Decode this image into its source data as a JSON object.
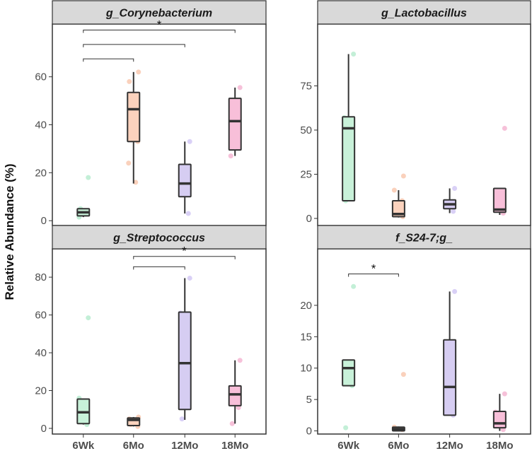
{
  "chart_data": {
    "type": "box",
    "ylabel": "Relative Abundance (%)",
    "categories": [
      "6Wk",
      "6Mo",
      "12Mo",
      "18Mo"
    ],
    "colors": {
      "6Wk": {
        "fill": "#c8f1d9",
        "point": "#b9ecd0"
      },
      "6Mo": {
        "fill": "#fbd2bd",
        "point": "#f9c9b0"
      },
      "12Mo": {
        "fill": "#d6cdf2",
        "point": "#d2c8f5"
      },
      "18Mo": {
        "fill": "#f8bfd9",
        "point": "#f5b6d2"
      }
    },
    "panels": [
      {
        "title": "g_Corynebacterium",
        "ylim": [
          -2,
          82
        ],
        "yticks": [
          0,
          20,
          40,
          60
        ],
        "boxes": [
          {
            "category": "6Wk",
            "whisker_low": 1.5,
            "q1": 2,
            "median": 3.5,
            "q3": 5,
            "whisker_high": 5
          },
          {
            "category": "6Mo",
            "whisker_low": 15.5,
            "q1": 33,
            "median": 46.5,
            "q3": 53.5,
            "whisker_high": 62
          },
          {
            "category": "12Mo",
            "whisker_low": 3,
            "q1": 10,
            "median": 15.5,
            "q3": 23.5,
            "whisker_high": 33
          },
          {
            "category": "18Mo",
            "whisker_low": 27,
            "q1": 29.5,
            "median": 41.5,
            "q3": 51,
            "whisker_high": 55.5
          }
        ],
        "points": [
          {
            "category": "6Wk",
            "values": [
              18,
              1.5,
              3,
              5
            ]
          },
          {
            "category": "6Mo",
            "values": [
              62,
              58,
              47,
              43,
              33,
              24,
              16
            ]
          },
          {
            "category": "12Mo",
            "values": [
              33,
              16,
              3
            ]
          },
          {
            "category": "18Mo",
            "values": [
              55.5,
              27
            ]
          }
        ],
        "significance": [
          {
            "from": "6Wk",
            "to": "6Mo",
            "value": 67.5,
            "label": ""
          },
          {
            "from": "6Wk",
            "to": "12Mo",
            "value": 73.5,
            "label": ""
          },
          {
            "from": "6Wk",
            "to": "18Mo",
            "value": 79.5,
            "label": "*"
          }
        ]
      },
      {
        "title": "g_Lactobacillus",
        "ylim": [
          -4,
          110
        ],
        "yticks": [
          0,
          25,
          50,
          75
        ],
        "boxes": [
          {
            "category": "6Wk",
            "whisker_low": 10,
            "q1": 10,
            "median": 51,
            "q3": 57.5,
            "whisker_high": 93
          },
          {
            "category": "6Mo",
            "whisker_low": 0.5,
            "q1": 1,
            "median": 2.5,
            "q3": 10,
            "whisker_high": 16
          },
          {
            "category": "12Mo",
            "whisker_low": 3,
            "q1": 5.5,
            "median": 8,
            "q3": 10.5,
            "whisker_high": 17
          },
          {
            "category": "18Mo",
            "whisker_low": 2,
            "q1": 3.5,
            "median": 5,
            "q3": 17,
            "whisker_high": 17
          }
        ],
        "points": [
          {
            "category": "6Wk",
            "values": [
              93,
              57,
              51,
              10
            ]
          },
          {
            "category": "6Mo",
            "values": [
              24,
              16,
              10,
              2,
              1
            ]
          },
          {
            "category": "12Mo",
            "values": [
              17,
              9,
              4
            ]
          },
          {
            "category": "18Mo",
            "values": [
              51,
              16,
              3
            ]
          }
        ],
        "significance": []
      },
      {
        "title": "g_Streptococcus",
        "ylim": [
          -3,
          95
        ],
        "yticks": [
          0,
          20,
          40,
          60,
          80
        ],
        "boxes": [
          {
            "category": "6Wk",
            "whisker_low": 2,
            "q1": 2.5,
            "median": 8.5,
            "q3": 15.5,
            "whisker_high": 15.5
          },
          {
            "category": "6Mo",
            "whisker_low": 1,
            "q1": 1.5,
            "median": 4.5,
            "q3": 5.5,
            "whisker_high": 6
          },
          {
            "category": "12Mo",
            "whisker_low": 4.5,
            "q1": 10,
            "median": 34.5,
            "q3": 61.5,
            "whisker_high": 79.5
          },
          {
            "category": "18Mo",
            "whisker_low": 2.5,
            "q1": 12,
            "median": 18,
            "q3": 22.5,
            "whisker_high": 36
          }
        ],
        "points": [
          {
            "category": "6Wk",
            "values": [
              58.5,
              16,
              2
            ]
          },
          {
            "category": "6Mo",
            "values": [
              6,
              5,
              4,
              2,
              1
            ]
          },
          {
            "category": "12Mo",
            "values": [
              79.5,
              61,
              34,
              5
            ]
          },
          {
            "category": "18Mo",
            "values": [
              36,
              18,
              11,
              2.5
            ]
          }
        ],
        "significance": [
          {
            "from": "6Mo",
            "to": "12Mo",
            "value": 85.5,
            "label": ""
          },
          {
            "from": "6Mo",
            "to": "18Mo",
            "value": 91,
            "label": "*"
          }
        ]
      },
      {
        "title": "f_S24-7;g_",
        "ylim": [
          -0.5,
          29
        ],
        "yticks": [
          0,
          5,
          10,
          15,
          20
        ],
        "boxes": [
          {
            "category": "6Wk",
            "whisker_low": 7.2,
            "q1": 7.2,
            "median": 10,
            "q3": 11.3,
            "whisker_high": 11.3
          },
          {
            "category": "6Mo",
            "whisker_low": 0,
            "q1": 0,
            "median": 0.3,
            "q3": 0.6,
            "whisker_high": 0.7
          },
          {
            "category": "12Mo",
            "whisker_low": 2.5,
            "q1": 2.5,
            "median": 7,
            "q3": 14.5,
            "whisker_high": 22.2
          },
          {
            "category": "18Mo",
            "whisker_low": 0,
            "q1": 0.5,
            "median": 1.2,
            "q3": 3.1,
            "whisker_high": 5.9
          }
        ],
        "points": [
          {
            "category": "6Wk",
            "values": [
              23,
              11,
              7.2,
              0.5
            ]
          },
          {
            "category": "6Mo",
            "values": [
              9,
              0.6,
              0.2
            ]
          },
          {
            "category": "12Mo",
            "values": [
              22.2,
              7,
              2.5
            ]
          },
          {
            "category": "18Mo",
            "values": [
              5.9,
              3,
              0.2
            ]
          }
        ],
        "significance": [
          {
            "from": "6Wk",
            "to": "6Mo",
            "value": 25,
            "label": "*"
          }
        ]
      }
    ]
  }
}
